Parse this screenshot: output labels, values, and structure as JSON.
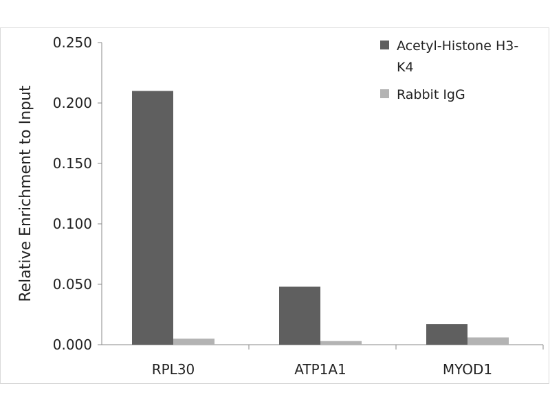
{
  "chart_data": {
    "type": "bar",
    "title": "",
    "xlabel": "",
    "ylabel": "Relative Enrichment to Input",
    "categories": [
      "RPL30",
      "ATP1A1",
      "MYOD1"
    ],
    "ylim": [
      0,
      0.25
    ],
    "yticks": [
      "0.000",
      "0.050",
      "0.100",
      "0.150",
      "0.200",
      "0.250"
    ],
    "grid": false,
    "legend_position": "top-right",
    "series": [
      {
        "name": "Acetyl-Histone H3-K4",
        "color": "#5f5f5f",
        "values": [
          0.21,
          0.048,
          0.017
        ]
      },
      {
        "name": "Rabbit IgG",
        "color": "#b3b3b3",
        "values": [
          0.005,
          0.003,
          0.006
        ]
      }
    ]
  }
}
